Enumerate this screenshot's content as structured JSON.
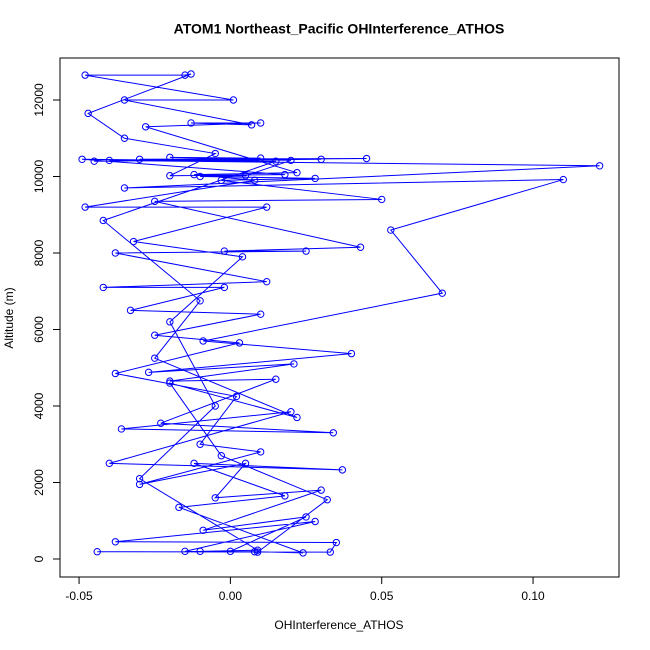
{
  "chart_data": {
    "type": "line",
    "title": "ATOM1 Northeast_Pacific OHInterference_ATHOS",
    "x_label": "OHInterference_ATHOS",
    "y_label": "Altitude (m)",
    "color": "#0000ff",
    "markers": true,
    "xlim": [
      -0.0563,
      0.1284
    ],
    "ylim": [
      -471,
      13098
    ],
    "xticks": [
      -0.05,
      {
        "value": 0,
        "label": "0.00"
      },
      0.05,
      {
        "value": 0.1,
        "label": "0.10"
      }
    ],
    "yticks": [
      0,
      2000,
      4000,
      6000,
      8000,
      10000,
      12000
    ],
    "x": [
      -0.044,
      0.033,
      0.035,
      -0.038,
      0.028,
      -0.015,
      0.008,
      0.024,
      -0.017,
      0.018,
      -0.012,
      0.037,
      -0.04,
      0.02,
      -0.036,
      0.034,
      -0.023,
      0.015,
      -0.02,
      0.021,
      -0.027,
      0.04,
      -0.009,
      0.07,
      0.053,
      0.11,
      -0.035,
      0.122,
      -0.04,
      0.045,
      -0.03,
      0.03,
      -0.045,
      0.01,
      -0.02,
      0.02,
      0.005,
      -0.01,
      0.028,
      -0.003,
      0.05,
      -0.025,
      0.043,
      -0.002,
      0.025,
      -0.038,
      0.012,
      -0.042,
      -0.002,
      -0.033,
      0.01,
      -0.025,
      0.003,
      -0.038,
      0.002,
      -0.01,
      0.01,
      -0.03,
      0.005,
      -0.005,
      0.03,
      -0.009,
      0.025,
      0.0,
      -0.01,
      0.009,
      -0.03,
      -0.005,
      -0.02,
      0.004,
      -0.032,
      0.012,
      -0.048,
      0.008,
      -0.012,
      0.022,
      -0.028,
      0.01,
      -0.013,
      0.007,
      -0.035,
      0.001,
      -0.048,
      -0.015,
      -0.013,
      -0.047,
      -0.035,
      -0.005,
      -0.02,
      0.018,
      -0.049,
      0.015,
      -0.042,
      -0.01,
      -0.025,
      0.022,
      -0.02,
      -0.003,
      0.032,
      0.009
    ],
    "y": [
      190,
      180,
      430,
      450,
      980,
      200,
      190,
      160,
      1350,
      1650,
      2500,
      2330,
      2500,
      3850,
      3400,
      3300,
      3550,
      4700,
      4650,
      5100,
      4880,
      5370,
      5700,
      6950,
      8600,
      9920,
      9700,
      10280,
      10420,
      10470,
      10450,
      10450,
      10400,
      10480,
      10500,
      10420,
      10020,
      10000,
      9950,
      9900,
      9400,
      9350,
      8150,
      8050,
      8050,
      8000,
      7250,
      7100,
      7100,
      6500,
      6400,
      5850,
      5650,
      4850,
      4250,
      3000,
      2800,
      1950,
      2500,
      1600,
      1800,
      750,
      1100,
      200,
      200,
      230,
      2100,
      4000,
      6200,
      7900,
      8300,
      9200,
      9200,
      9900,
      10050,
      10100,
      11300,
      11400,
      11400,
      11350,
      12000,
      12000,
      12650,
      12650,
      12680,
      11650,
      11000,
      10600,
      10020,
      10050,
      10450,
      10400,
      8850,
      6750,
      5250,
      3700,
      4600,
      2700,
      1550,
      180
    ]
  }
}
